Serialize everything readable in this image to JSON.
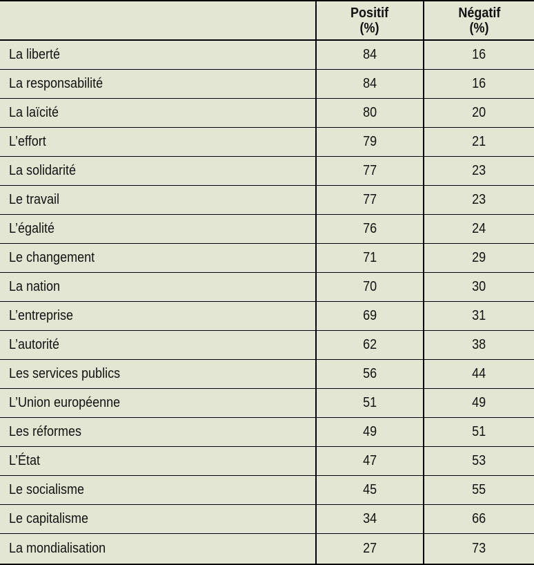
{
  "colors": {
    "background": "#e2e6d2",
    "line": "#000000",
    "text": "#111111"
  },
  "table": {
    "header": {
      "columns": [
        {
          "label": "Positif",
          "unit": "(%)"
        },
        {
          "label": "Négatif",
          "unit": "(%)"
        }
      ]
    },
    "rows": [
      {
        "label": "La liberté",
        "positif": "84",
        "negatif": "16"
      },
      {
        "label": "La responsabilité",
        "positif": "84",
        "negatif": "16"
      },
      {
        "label": "La laïcité",
        "positif": "80",
        "negatif": "20"
      },
      {
        "label": "L’effort",
        "positif": "79",
        "negatif": "21"
      },
      {
        "label": "La solidarité",
        "positif": "77",
        "negatif": "23"
      },
      {
        "label": "Le travail",
        "positif": "77",
        "negatif": "23"
      },
      {
        "label": "L’égalité",
        "positif": "76",
        "negatif": "24"
      },
      {
        "label": "Le changement",
        "positif": "71",
        "negatif": "29"
      },
      {
        "label": "La nation",
        "positif": "70",
        "negatif": "30"
      },
      {
        "label": "L’entreprise",
        "positif": "69",
        "negatif": "31"
      },
      {
        "label": "L’autorité",
        "positif": "62",
        "negatif": "38"
      },
      {
        "label": "Les services publics",
        "positif": "56",
        "negatif": "44"
      },
      {
        "label": "L’Union européenne",
        "positif": "51",
        "negatif": "49"
      },
      {
        "label": "Les réformes",
        "positif": "49",
        "negatif": "51"
      },
      {
        "label": "L’État",
        "positif": "47",
        "negatif": "53"
      },
      {
        "label": "Le socialisme",
        "positif": "45",
        "negatif": "55"
      },
      {
        "label": "Le capitalisme",
        "positif": "34",
        "negatif": "66"
      },
      {
        "label": "La mondialisation",
        "positif": "27",
        "negatif": "73"
      }
    ]
  },
  "chart_data": {
    "type": "table",
    "categories": [
      "La liberté",
      "La responsabilité",
      "La laïcité",
      "L’effort",
      "La solidarité",
      "Le travail",
      "L’égalité",
      "Le changement",
      "La nation",
      "L’entreprise",
      "L’autorité",
      "Les services publics",
      "L’Union européenne",
      "Les réformes",
      "L’État",
      "Le socialisme",
      "Le capitalisme",
      "La mondialisation"
    ],
    "series": [
      {
        "name": "Positif (%)",
        "values": [
          84,
          84,
          80,
          79,
          77,
          77,
          76,
          71,
          70,
          69,
          62,
          56,
          51,
          49,
          47,
          45,
          34,
          27
        ]
      },
      {
        "name": "Négatif (%)",
        "values": [
          16,
          16,
          20,
          21,
          23,
          23,
          24,
          29,
          30,
          31,
          38,
          44,
          49,
          51,
          53,
          55,
          66,
          73
        ]
      }
    ]
  }
}
